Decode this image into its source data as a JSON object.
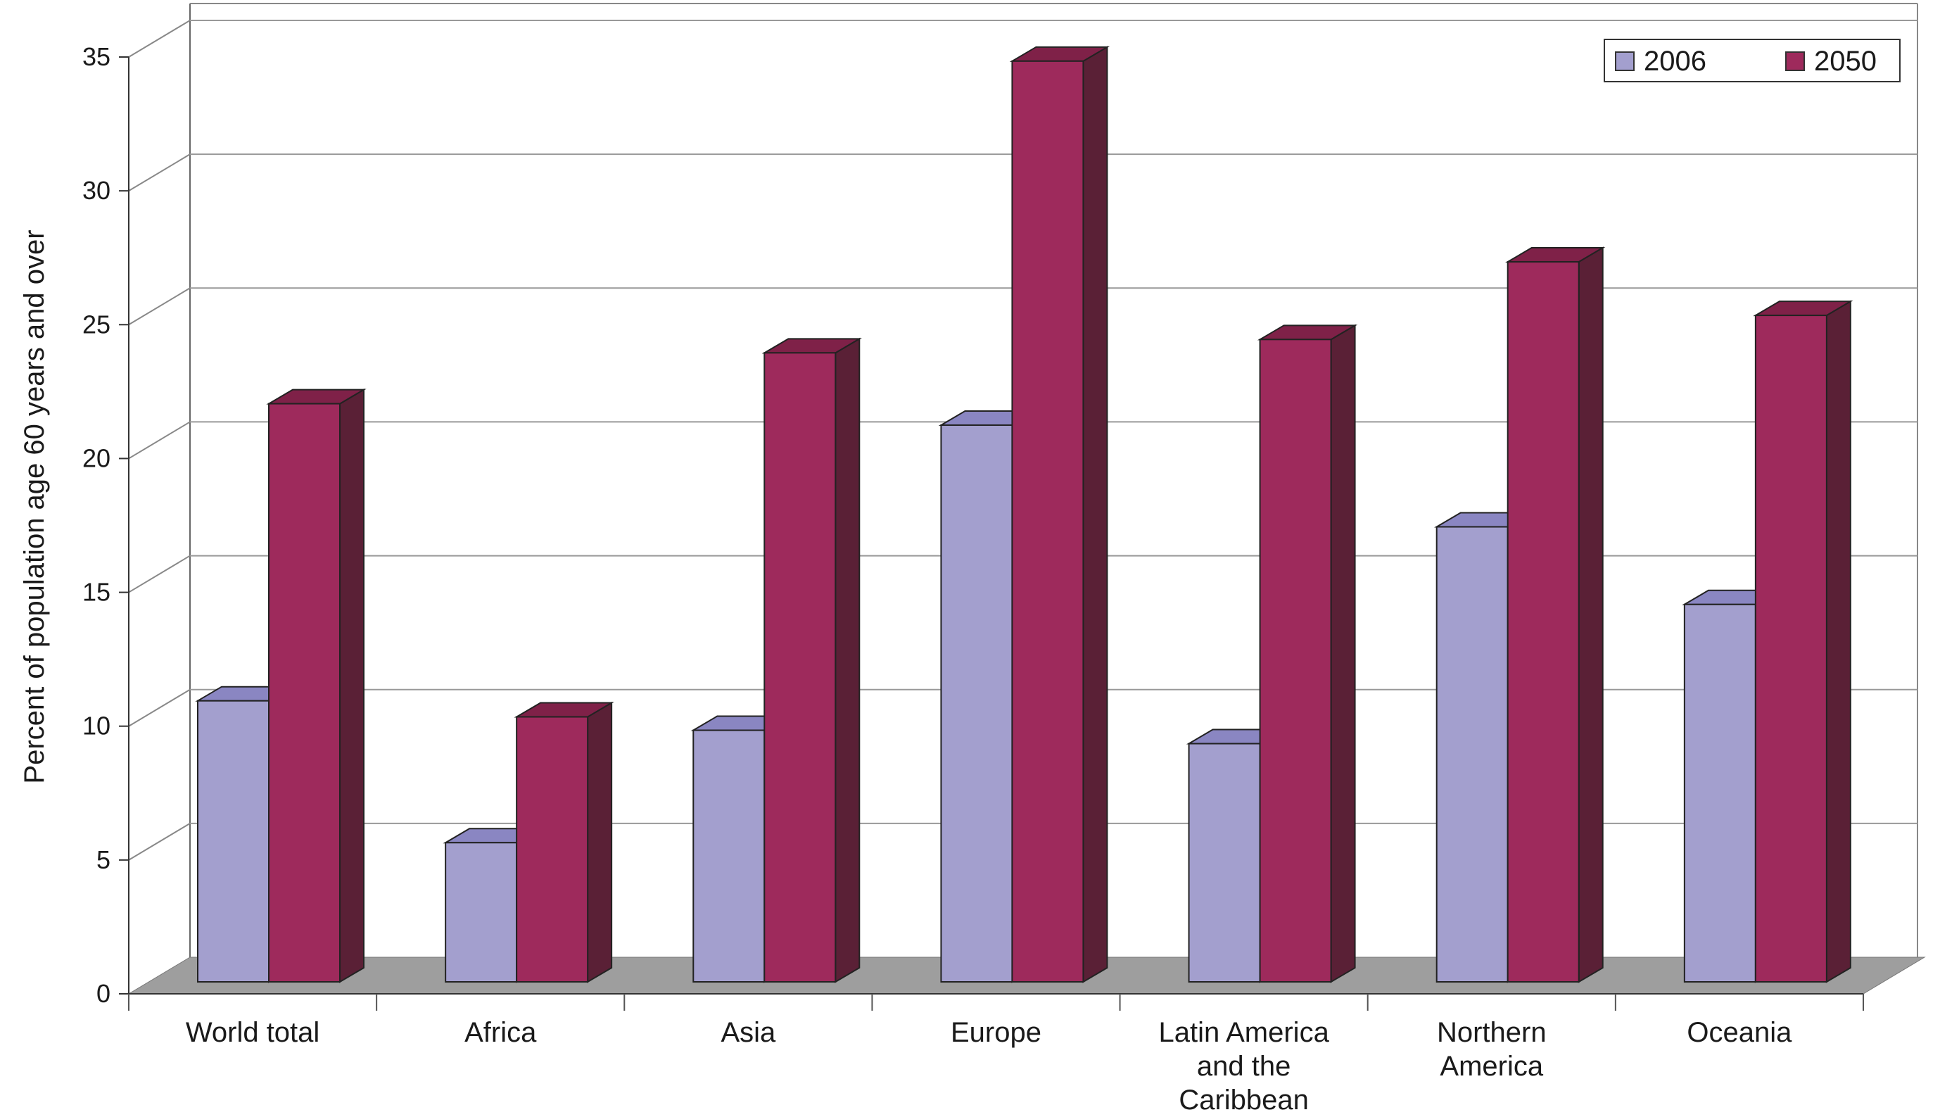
{
  "chart_data": {
    "type": "bar",
    "style": "3d-clustered",
    "title": "",
    "xlabel": "",
    "ylabel": "Percent of population age 60 years and over",
    "ylim": [
      0,
      35
    ],
    "yticks": [
      0,
      5,
      10,
      15,
      20,
      25,
      30,
      35
    ],
    "grid": true,
    "legend_position": "top-right",
    "categories": [
      [
        "World total"
      ],
      [
        "Africa"
      ],
      [
        "Asia"
      ],
      [
        "Europe"
      ],
      [
        "Latin America",
        "and the",
        "Caribbean"
      ],
      [
        "Northern",
        "America"
      ],
      [
        "Oceania"
      ]
    ],
    "series": [
      {
        "name": "2006",
        "color": "#a39fce",
        "side_color": "#7d78b4",
        "top_color": "#8a86c2",
        "values": [
          10.5,
          5.2,
          9.4,
          20.8,
          8.9,
          17.0,
          14.1
        ]
      },
      {
        "name": "2050",
        "color": "#9e2a5c",
        "side_color": "#5a2036",
        "top_color": "#7f2148",
        "values": [
          21.6,
          9.9,
          23.5,
          34.4,
          24.0,
          26.9,
          24.9
        ]
      }
    ],
    "floor_color": "#9e9e9e"
  }
}
